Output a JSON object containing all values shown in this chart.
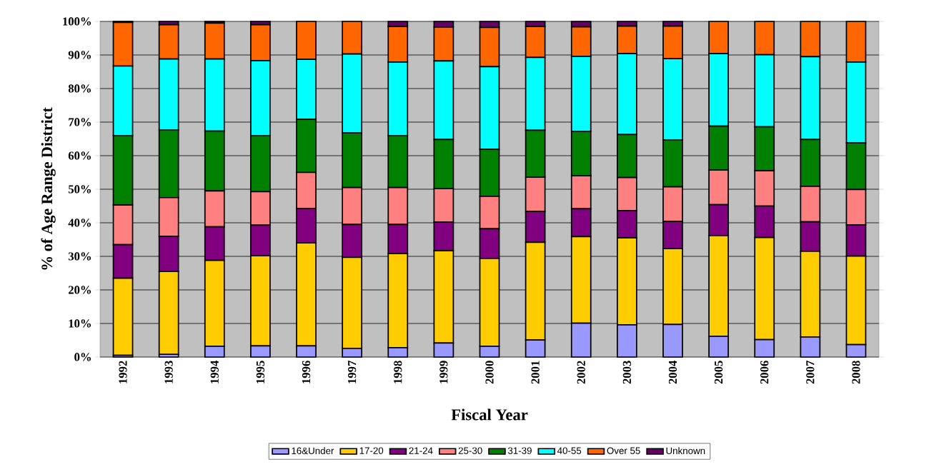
{
  "chart_data": {
    "type": "bar",
    "stacked": true,
    "xlabel": "Fiscal Year",
    "ylabel": "% of Age Range District",
    "categories": [
      "1992",
      "1993",
      "1994",
      "1995",
      "1996",
      "1997",
      "1998",
      "1999",
      "2000",
      "2001",
      "2002",
      "2003",
      "2004",
      "2005",
      "2006",
      "2007",
      "2008"
    ],
    "ylim": [
      0,
      100
    ],
    "yticks": [
      {
        "value": 0,
        "label": "0%"
      },
      {
        "value": 10,
        "label": "10%"
      },
      {
        "value": 20,
        "label": "20%"
      },
      {
        "value": 30,
        "label": "30%"
      },
      {
        "value": 40,
        "label": "40%"
      },
      {
        "value": 50,
        "label": "50%"
      },
      {
        "value": 60,
        "label": "60%"
      },
      {
        "value": 70,
        "label": "70%"
      },
      {
        "value": 80,
        "label": "80%"
      },
      {
        "value": 90,
        "label": "90%"
      },
      {
        "value": 100,
        "label": "100%"
      }
    ],
    "grid": "y",
    "legend": "bottom",
    "series": [
      {
        "name": "16&Under",
        "color": "#9999ff",
        "values": [
          0.5,
          0.8,
          3.2,
          3.3,
          3.3,
          2.6,
          2.8,
          4.2,
          3.2,
          5.1,
          10.1,
          9.6,
          9.7,
          6.2,
          5.2,
          6.0,
          3.7
        ]
      },
      {
        "name": "17-20",
        "color": "#ffcc00",
        "values": [
          23.0,
          24.7,
          25.6,
          26.9,
          30.7,
          27.1,
          28.0,
          27.5,
          26.2,
          29.1,
          25.8,
          25.9,
          22.6,
          30.0,
          30.4,
          25.5,
          26.4
        ]
      },
      {
        "name": "21-24",
        "color": "#800080",
        "values": [
          10.0,
          10.5,
          10.0,
          9.1,
          10.3,
          9.8,
          8.7,
          8.5,
          8.8,
          9.2,
          8.3,
          8.1,
          8.1,
          9.2,
          9.4,
          8.8,
          9.3
        ]
      },
      {
        "name": "25-30",
        "color": "#ff8080",
        "values": [
          11.8,
          11.5,
          10.7,
          10.0,
          10.7,
          11.0,
          11.0,
          10.0,
          9.7,
          10.2,
          9.8,
          9.9,
          10.3,
          10.3,
          10.5,
          10.6,
          10.5
        ]
      },
      {
        "name": "31-39",
        "color": "#008000",
        "values": [
          20.7,
          20.2,
          17.8,
          16.7,
          15.8,
          16.3,
          15.5,
          14.6,
          14.0,
          14.0,
          13.2,
          12.8,
          14.0,
          13.1,
          13.1,
          13.9,
          13.9
        ]
      },
      {
        "name": "40-55",
        "color": "#00ffff",
        "values": [
          20.7,
          21.1,
          21.5,
          22.3,
          17.9,
          23.5,
          21.9,
          23.4,
          24.6,
          21.7,
          22.4,
          24.1,
          24.2,
          21.6,
          21.5,
          24.7,
          24.1
        ]
      },
      {
        "name": "Over 55",
        "color": "#ff6600",
        "values": [
          13.0,
          10.2,
          10.7,
          10.7,
          11.3,
          9.7,
          10.6,
          10.1,
          11.7,
          9.2,
          8.8,
          8.2,
          9.7,
          9.6,
          9.9,
          10.5,
          12.1
        ]
      },
      {
        "name": "Unknown",
        "color": "#660066",
        "values": [
          0.3,
          1.0,
          0.5,
          1.0,
          0,
          0,
          1.5,
          1.7,
          1.8,
          1.5,
          1.6,
          1.4,
          1.4,
          0,
          0,
          0,
          0
        ]
      }
    ]
  }
}
